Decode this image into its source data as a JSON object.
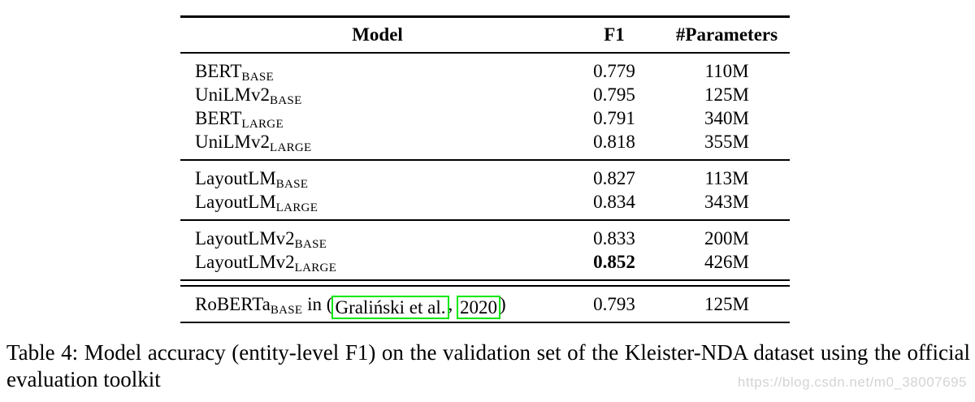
{
  "table": {
    "columns": [
      "Model",
      "F1",
      "#Parameters"
    ],
    "groups": [
      {
        "rows": [
          {
            "model": "BERT",
            "sub": "BASE",
            "f1": "0.779",
            "params": "110M"
          },
          {
            "model": "UniLMv2",
            "sub": "BASE",
            "f1": "0.795",
            "params": "125M"
          },
          {
            "model": "BERT",
            "sub": "LARGE",
            "f1": "0.791",
            "params": "340M"
          },
          {
            "model": "UniLMv2",
            "sub": "LARGE",
            "f1": "0.818",
            "params": "355M"
          }
        ]
      },
      {
        "rows": [
          {
            "model": "LayoutLM",
            "sub": "BASE",
            "f1": "0.827",
            "params": "113M"
          },
          {
            "model": "LayoutLM",
            "sub": "LARGE",
            "f1": "0.834",
            "params": "343M"
          }
        ]
      },
      {
        "rows": [
          {
            "model": "LayoutLMv2",
            "sub": "BASE",
            "f1": "0.833",
            "params": "200M"
          },
          {
            "model": "LayoutLMv2",
            "sub": "LARGE",
            "f1": "0.852",
            "params": "426M",
            "f1_bold": true
          }
        ]
      },
      {
        "rows": [
          {
            "model": "RoBERTa",
            "sub": "BASE",
            "f1": "0.793",
            "params": "125M",
            "citation": {
              "prefix": " in (",
              "link1": "Graliński et al.",
              "sep": ",",
              "space": " ",
              "link2": "2020",
              "suffix": ")"
            }
          }
        ]
      }
    ]
  },
  "caption": "Table 4: Model accuracy (entity-level F1) on the validation set of the Kleister-NDA dataset using the official evaluation toolkit",
  "watermark": "https://blog.csdn.net/m0_38007695",
  "colors": {
    "link_box": "#00e800",
    "watermark": "#d4d4d4",
    "text": "#000000"
  }
}
